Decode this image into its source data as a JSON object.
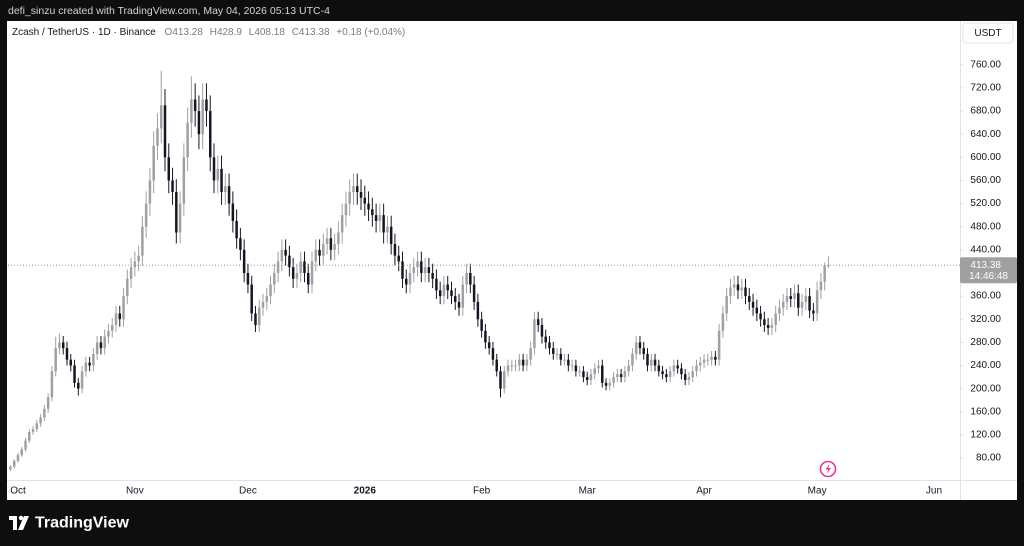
{
  "header": "defi_sinzu created with TradingView.com, May 04, 2026 05:13 UTC-4",
  "brand": "TradingView",
  "chart_data": {
    "type": "candlestick",
    "title": "Zcash / TetherUS · 1D · Binance",
    "ohlc_labels": [
      "O",
      "H",
      "L",
      "C"
    ],
    "change": "+0.18 (+0.04%)",
    "currency": "USDT",
    "countdown": "14:46:48",
    "up_color": "#a0a0a0",
    "down_color": "#131722",
    "grid": false,
    "ylim": [
      42,
      834
    ],
    "yticks": [
      {
        "value": 80,
        "label": "80.00"
      },
      {
        "value": 120,
        "label": "120.00"
      },
      {
        "value": 160,
        "label": "160.00"
      },
      {
        "value": 200,
        "label": "200.00"
      },
      {
        "value": 240,
        "label": "240.00"
      },
      {
        "value": 280,
        "label": "280.00"
      },
      {
        "value": 320,
        "label": "320.00"
      },
      {
        "value": 360,
        "label": "360.00"
      },
      {
        "value": 400,
        "label": "400.00"
      },
      {
        "value": 440,
        "label": "440.00"
      },
      {
        "value": 480,
        "label": "480.00"
      },
      {
        "value": 520,
        "label": "520.00"
      },
      {
        "value": 560,
        "label": "560.00"
      },
      {
        "value": 600,
        "label": "600.00"
      },
      {
        "value": 640,
        "label": "640.00"
      },
      {
        "value": 680,
        "label": "680.00"
      },
      {
        "value": 720,
        "label": "720.00"
      },
      {
        "value": 760,
        "label": "760.00"
      }
    ],
    "xlim": [
      -0.65,
      251.9
    ],
    "xticks": [
      {
        "value": 2,
        "label": "Oct"
      },
      {
        "value": 33,
        "label": "Nov"
      },
      {
        "value": 63,
        "label": "Dec"
      },
      {
        "value": 94,
        "label": "2026",
        "bold": true
      },
      {
        "value": 125,
        "label": "Feb"
      },
      {
        "value": 153,
        "label": "Mar"
      },
      {
        "value": 184,
        "label": "Apr"
      },
      {
        "value": 214,
        "label": "May"
      },
      {
        "value": 245,
        "label": "Jun"
      }
    ],
    "candles": [
      [
        60,
        68,
        57,
        65
      ],
      [
        65,
        78,
        62,
        75
      ],
      [
        75,
        89,
        72,
        85
      ],
      [
        85,
        99,
        82,
        95
      ],
      [
        95,
        115,
        91,
        110
      ],
      [
        110,
        130,
        106,
        125
      ],
      [
        125,
        135,
        120,
        130
      ],
      [
        130,
        146,
        125,
        140
      ],
      [
        140,
        156,
        134,
        150
      ],
      [
        150,
        172,
        144,
        165
      ],
      [
        165,
        192,
        158,
        185
      ],
      [
        185,
        239,
        178,
        230
      ],
      [
        230,
        290,
        221,
        270
      ],
      [
        270,
        295,
        259,
        280
      ],
      [
        280,
        291,
        259,
        270
      ],
      [
        270,
        281,
        240,
        250
      ],
      [
        250,
        260,
        230,
        240
      ],
      [
        240,
        250,
        202,
        210
      ],
      [
        210,
        218,
        188,
        200
      ],
      [
        200,
        239,
        192,
        230
      ],
      [
        230,
        255,
        221,
        245
      ],
      [
        245,
        255,
        230,
        240
      ],
      [
        240,
        270,
        230,
        260
      ],
      [
        260,
        291,
        250,
        280
      ],
      [
        280,
        291,
        259,
        270
      ],
      [
        270,
        302,
        259,
        290
      ],
      [
        290,
        312,
        278,
        300
      ],
      [
        300,
        322,
        288,
        310
      ],
      [
        310,
        343,
        298,
        330
      ],
      [
        330,
        343,
        307,
        320
      ],
      [
        320,
        374,
        307,
        360
      ],
      [
        360,
        406,
        346,
        390
      ],
      [
        390,
        426,
        374,
        410
      ],
      [
        410,
        437,
        394,
        420
      ],
      [
        420,
        447,
        403,
        430
      ],
      [
        430,
        499,
        413,
        480
      ],
      [
        480,
        541,
        461,
        520
      ],
      [
        520,
        582,
        499,
        560
      ],
      [
        560,
        645,
        538,
        620
      ],
      [
        620,
        676,
        595,
        650
      ],
      [
        650,
        750,
        624,
        690
      ],
      [
        690,
        718,
        576,
        600
      ],
      [
        600,
        624,
        538,
        560
      ],
      [
        560,
        582,
        518,
        540
      ],
      [
        540,
        562,
        451,
        470
      ],
      [
        470,
        541,
        451,
        520
      ],
      [
        520,
        624,
        499,
        600
      ],
      [
        600,
        686,
        576,
        660
      ],
      [
        660,
        740,
        634,
        700
      ],
      [
        700,
        728,
        653,
        680
      ],
      [
        680,
        707,
        614,
        640
      ],
      [
        640,
        728,
        614,
        700
      ],
      [
        700,
        728,
        653,
        680
      ],
      [
        680,
        707,
        576,
        600
      ],
      [
        600,
        624,
        538,
        560
      ],
      [
        560,
        603,
        538,
        580
      ],
      [
        580,
        603,
        518,
        540
      ],
      [
        540,
        572,
        518,
        550
      ],
      [
        550,
        572,
        499,
        520
      ],
      [
        520,
        541,
        470,
        490
      ],
      [
        490,
        510,
        442,
        460
      ],
      [
        460,
        478,
        422,
        440
      ],
      [
        440,
        458,
        384,
        400
      ],
      [
        400,
        416,
        365,
        380
      ],
      [
        380,
        395,
        317,
        330
      ],
      [
        330,
        343,
        298,
        310
      ],
      [
        310,
        354,
        298,
        340
      ],
      [
        340,
        364,
        326,
        350
      ],
      [
        350,
        374,
        336,
        360
      ],
      [
        360,
        395,
        346,
        380
      ],
      [
        380,
        416,
        365,
        400
      ],
      [
        400,
        437,
        384,
        420
      ],
      [
        420,
        458,
        403,
        440
      ],
      [
        440,
        458,
        413,
        430
      ],
      [
        430,
        447,
        394,
        410
      ],
      [
        410,
        426,
        374,
        390
      ],
      [
        390,
        416,
        374,
        400
      ],
      [
        400,
        437,
        384,
        420
      ],
      [
        420,
        437,
        384,
        400
      ],
      [
        400,
        416,
        365,
        380
      ],
      [
        380,
        437,
        365,
        420
      ],
      [
        420,
        458,
        403,
        440
      ],
      [
        440,
        458,
        413,
        430
      ],
      [
        430,
        468,
        413,
        450
      ],
      [
        450,
        478,
        432,
        460
      ],
      [
        460,
        478,
        422,
        440
      ],
      [
        440,
        468,
        422,
        450
      ],
      [
        450,
        489,
        432,
        470
      ],
      [
        470,
        520,
        451,
        500
      ],
      [
        500,
        541,
        480,
        520
      ],
      [
        520,
        562,
        499,
        540
      ],
      [
        540,
        572,
        518,
        550
      ],
      [
        550,
        572,
        518,
        540
      ],
      [
        540,
        562,
        509,
        530
      ],
      [
        530,
        551,
        499,
        520
      ],
      [
        520,
        541,
        490,
        510
      ],
      [
        510,
        530,
        480,
        500
      ],
      [
        500,
        520,
        470,
        490
      ],
      [
        490,
        520,
        470,
        500
      ],
      [
        500,
        520,
        451,
        470
      ],
      [
        470,
        499,
        451,
        480
      ],
      [
        480,
        499,
        432,
        450
      ],
      [
        450,
        468,
        413,
        430
      ],
      [
        430,
        447,
        403,
        420
      ],
      [
        420,
        437,
        374,
        390
      ],
      [
        390,
        406,
        365,
        380
      ],
      [
        380,
        416,
        365,
        400
      ],
      [
        400,
        426,
        384,
        410
      ],
      [
        410,
        437,
        394,
        420
      ],
      [
        420,
        437,
        384,
        400
      ],
      [
        400,
        426,
        384,
        410
      ],
      [
        410,
        426,
        384,
        400
      ],
      [
        400,
        416,
        374,
        390
      ],
      [
        390,
        406,
        355,
        370
      ],
      [
        370,
        385,
        346,
        360
      ],
      [
        360,
        395,
        346,
        380
      ],
      [
        380,
        395,
        355,
        370
      ],
      [
        370,
        385,
        346,
        360
      ],
      [
        360,
        374,
        336,
        350
      ],
      [
        350,
        364,
        326,
        340
      ],
      [
        340,
        395,
        326,
        380
      ],
      [
        380,
        416,
        365,
        400
      ],
      [
        400,
        416,
        365,
        380
      ],
      [
        380,
        395,
        336,
        350
      ],
      [
        350,
        364,
        307,
        320
      ],
      [
        320,
        333,
        288,
        300
      ],
      [
        300,
        312,
        269,
        280
      ],
      [
        280,
        291,
        259,
        270
      ],
      [
        270,
        281,
        240,
        250
      ],
      [
        250,
        260,
        221,
        230
      ],
      [
        230,
        239,
        185,
        200
      ],
      [
        200,
        239,
        192,
        230
      ],
      [
        230,
        250,
        221,
        240
      ],
      [
        240,
        250,
        230,
        240
      ],
      [
        240,
        250,
        230,
        240
      ],
      [
        240,
        260,
        230,
        250
      ],
      [
        250,
        260,
        230,
        240
      ],
      [
        240,
        260,
        230,
        250
      ],
      [
        250,
        281,
        240,
        270
      ],
      [
        270,
        333,
        259,
        320
      ],
      [
        320,
        333,
        298,
        310
      ],
      [
        310,
        322,
        278,
        290
      ],
      [
        290,
        302,
        269,
        280
      ],
      [
        280,
        291,
        259,
        270
      ],
      [
        270,
        281,
        250,
        260
      ],
      [
        260,
        270,
        250,
        260
      ],
      [
        260,
        270,
        240,
        250
      ],
      [
        250,
        260,
        240,
        250
      ],
      [
        250,
        260,
        230,
        240
      ],
      [
        240,
        250,
        230,
        240
      ],
      [
        240,
        250,
        221,
        230
      ],
      [
        230,
        239,
        221,
        230
      ],
      [
        230,
        239,
        211,
        220
      ],
      [
        220,
        229,
        206,
        215
      ],
      [
        215,
        234,
        206,
        225
      ],
      [
        225,
        244,
        216,
        235
      ],
      [
        235,
        250,
        226,
        240
      ],
      [
        240,
        250,
        202,
        210
      ],
      [
        210,
        218,
        197,
        205
      ],
      [
        205,
        218,
        197,
        210
      ],
      [
        210,
        229,
        202,
        220
      ],
      [
        220,
        234,
        211,
        225
      ],
      [
        225,
        234,
        211,
        220
      ],
      [
        220,
        239,
        211,
        230
      ],
      [
        230,
        250,
        221,
        240
      ],
      [
        240,
        270,
        230,
        260
      ],
      [
        260,
        291,
        250,
        280
      ],
      [
        280,
        291,
        259,
        270
      ],
      [
        270,
        281,
        250,
        260
      ],
      [
        260,
        270,
        230,
        240
      ],
      [
        240,
        260,
        230,
        250
      ],
      [
        250,
        260,
        230,
        240
      ],
      [
        240,
        250,
        221,
        230
      ],
      [
        230,
        239,
        216,
        225
      ],
      [
        225,
        234,
        211,
        220
      ],
      [
        220,
        239,
        211,
        230
      ],
      [
        230,
        250,
        221,
        240
      ],
      [
        240,
        250,
        226,
        235
      ],
      [
        235,
        244,
        216,
        225
      ],
      [
        225,
        234,
        206,
        215
      ],
      [
        215,
        229,
        206,
        220
      ],
      [
        220,
        239,
        211,
        230
      ],
      [
        230,
        250,
        221,
        240
      ],
      [
        240,
        255,
        230,
        245
      ],
      [
        245,
        260,
        235,
        250
      ],
      [
        250,
        260,
        240,
        250
      ],
      [
        250,
        265,
        240,
        255
      ],
      [
        255,
        265,
        240,
        250
      ],
      [
        250,
        312,
        240,
        300
      ],
      [
        300,
        343,
        288,
        330
      ],
      [
        330,
        374,
        317,
        360
      ],
      [
        360,
        390,
        346,
        375
      ],
      [
        375,
        395,
        360,
        380
      ],
      [
        380,
        395,
        355,
        370
      ],
      [
        370,
        390,
        355,
        375
      ],
      [
        375,
        390,
        346,
        360
      ],
      [
        360,
        374,
        336,
        350
      ],
      [
        350,
        364,
        326,
        340
      ],
      [
        340,
        354,
        317,
        330
      ],
      [
        330,
        343,
        307,
        320
      ],
      [
        320,
        333,
        298,
        310
      ],
      [
        310,
        322,
        293,
        305
      ],
      [
        305,
        322,
        293,
        310
      ],
      [
        310,
        343,
        298,
        330
      ],
      [
        330,
        354,
        317,
        340
      ],
      [
        340,
        364,
        326,
        350
      ],
      [
        350,
        374,
        336,
        360
      ],
      [
        360,
        374,
        341,
        355
      ],
      [
        355,
        380,
        341,
        365
      ],
      [
        365,
        380,
        326,
        340
      ],
      [
        340,
        364,
        326,
        350
      ],
      [
        350,
        374,
        336,
        360
      ],
      [
        360,
        374,
        322,
        335
      ],
      [
        335,
        348,
        317,
        330
      ],
      [
        330,
        385,
        317,
        370
      ],
      [
        370,
        400,
        355,
        385
      ],
      [
        385,
        418,
        370,
        413.2
      ],
      [
        413.28,
        428.9,
        408.18,
        413.38
      ]
    ]
  }
}
